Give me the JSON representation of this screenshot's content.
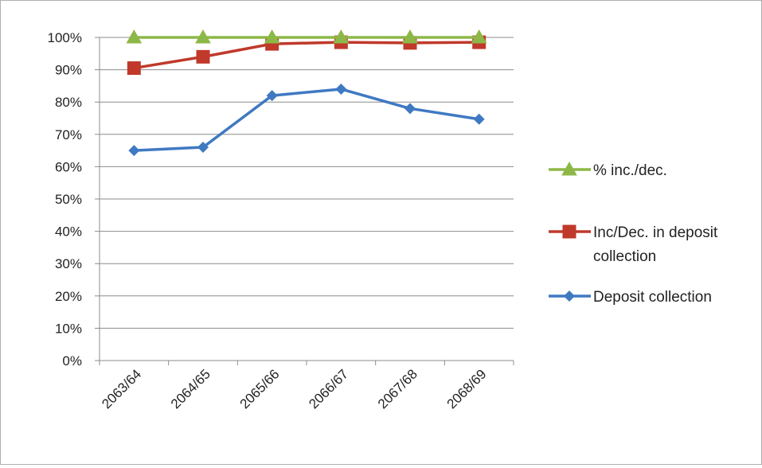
{
  "chart_data": {
    "type": "line",
    "categories": [
      "2063/64",
      "2064/65",
      "2065/66",
      "2066/67",
      "2067/68",
      "2068/69"
    ],
    "ylim": [
      0,
      100
    ],
    "yticks": [
      "0%",
      "10%",
      "20%",
      "30%",
      "40%",
      "50%",
      "60%",
      "70%",
      "80%",
      "90%",
      "100%"
    ],
    "grid": true,
    "legend_position": "right",
    "series": [
      {
        "name": "% inc./dec.",
        "values": [
          100,
          100,
          100,
          100,
          100,
          100
        ],
        "color": "#8db847",
        "marker": "triangle"
      },
      {
        "name": "Inc/Dec. in deposit collection",
        "name_lines": [
          "Inc/Dec. in deposit",
          "collection"
        ],
        "values": [
          90.5,
          94,
          98,
          98.5,
          98.3,
          98.5
        ],
        "color": "#c0392b",
        "marker": "square"
      },
      {
        "name": "Deposit collection",
        "values": [
          65,
          66,
          82,
          84,
          78,
          74.7
        ],
        "color": "#3f79c2",
        "marker": "diamond"
      }
    ]
  }
}
